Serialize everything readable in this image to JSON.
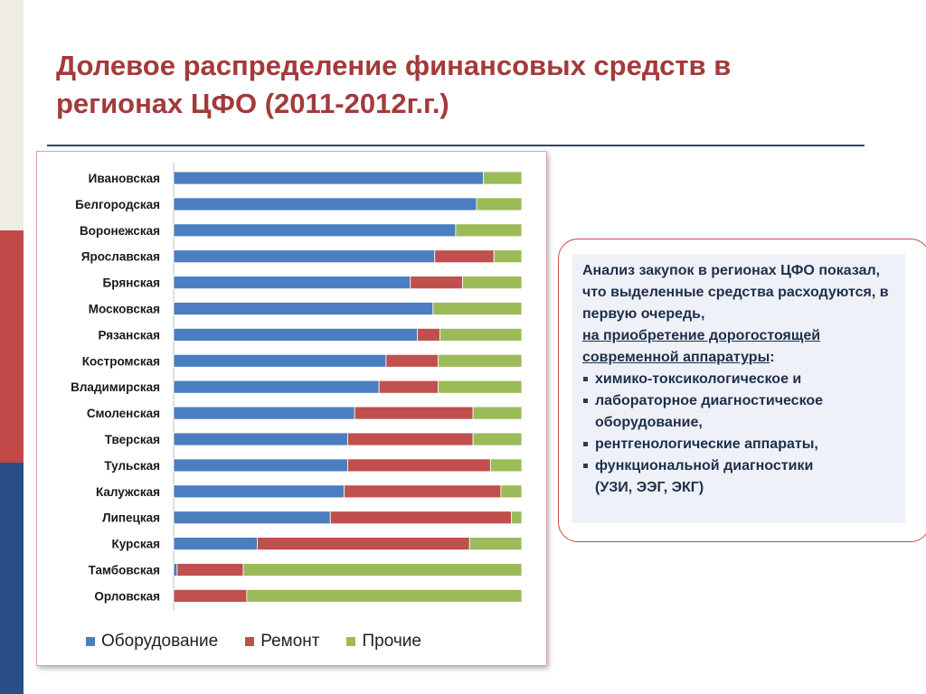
{
  "slide": {
    "title": "Долевое распределение финансовых средств в регионах ЦФО (2011-2012г.г.)"
  },
  "colors": {
    "equipment": "#4a7ec0",
    "repair": "#c0504d",
    "other": "#9bbb59",
    "title": "#a33a3a"
  },
  "chart_data": {
    "type": "bar",
    "orientation": "horizontal",
    "stacked": "percent",
    "title": "",
    "xlabel": "",
    "ylabel": "",
    "xlim": [
      0,
      100
    ],
    "grid": false,
    "legend_position": "bottom",
    "categories": [
      "Ивановская",
      "Белгородская",
      "Воронежская",
      "Ярославская",
      "Брянская",
      "Московская",
      "Рязанская",
      "Костромская",
      "Владимирская",
      "Смоленская",
      "Тверская",
      "Тульская",
      "Калужская",
      "Липецкая",
      "Курская",
      "Тамбовская",
      "Орловская"
    ],
    "series": [
      {
        "name": "Оборудование",
        "color": "#4a7ec0",
        "values": [
          89,
          87,
          81,
          75,
          68,
          74.5,
          70,
          61,
          59,
          52,
          50,
          50,
          49,
          45,
          24,
          1,
          0
        ]
      },
      {
        "name": "Ремонт",
        "color": "#c0504d",
        "values": [
          0,
          0,
          0,
          17,
          15,
          0,
          6.5,
          15,
          17,
          34,
          36,
          41,
          45,
          52,
          61,
          19,
          21
        ]
      },
      {
        "name": "Прочие",
        "color": "#9bbb59",
        "values": [
          11,
          13,
          19,
          8,
          17,
          25.5,
          23.5,
          24,
          24,
          14,
          14,
          9,
          6,
          3,
          15,
          80,
          79
        ]
      }
    ]
  },
  "info": {
    "intro": "Анализ закупок в регионах ЦФО показал, что выделенные средства расходуются, в первую очередь,",
    "underlined": "на приобретение дорогостоящей современной аппаратуры",
    "colon": ":",
    "bullets": [
      "химико-токсикологическое и",
      "лабораторное диагностическое",
      "оборудование,",
      "рентгенологические аппараты,",
      "функциональной диагностики",
      "(УЗИ, ЭЭГ, ЭКГ)"
    ]
  }
}
